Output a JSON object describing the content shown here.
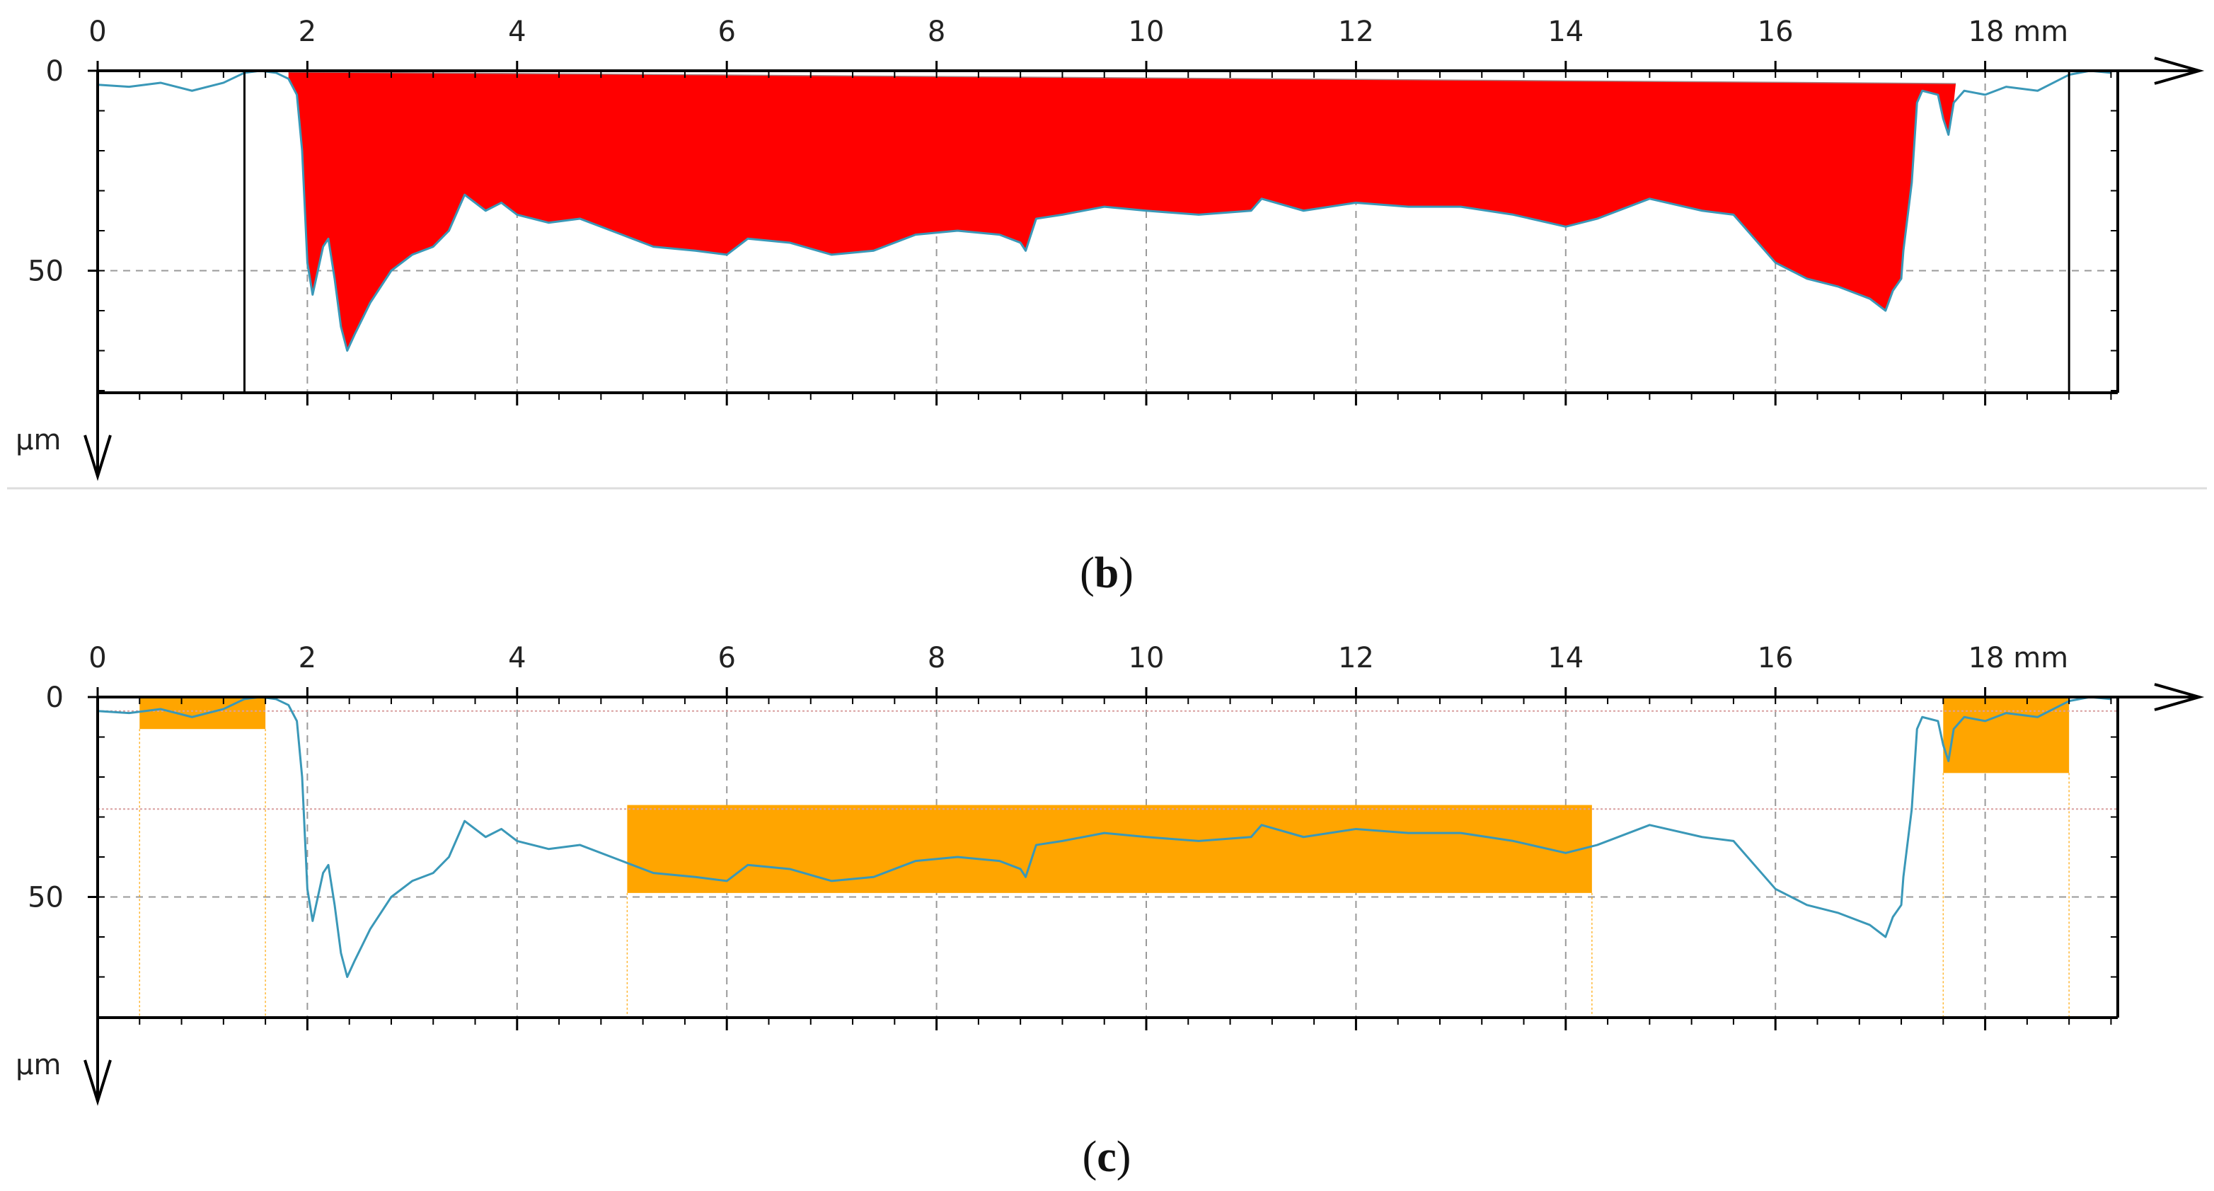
{
  "chart_data": [
    {
      "panel_label": "b",
      "type": "area",
      "x_unit": "mm",
      "y_unit": "µm",
      "xlim": [
        0,
        19.2
      ],
      "ylim": [
        0,
        80
      ],
      "x_major_ticks": [
        0,
        2,
        4,
        6,
        8,
        10,
        12,
        14,
        16,
        18
      ],
      "y_major_ticks": [
        0,
        50
      ],
      "y_inverted": true,
      "grid": true,
      "grid_style": "dashed",
      "boundary_lines_x": [
        1.4,
        18.8
      ],
      "profile": {
        "color": "#3a98b8",
        "points": [
          [
            0,
            3.5
          ],
          [
            0.3,
            4
          ],
          [
            0.6,
            3
          ],
          [
            0.9,
            5
          ],
          [
            1.2,
            3
          ],
          [
            1.4,
            0.5
          ],
          [
            1.55,
            0
          ],
          [
            1.7,
            0.5
          ],
          [
            1.82,
            2
          ],
          [
            1.9,
            6
          ],
          [
            1.95,
            20
          ],
          [
            2.0,
            48
          ],
          [
            2.05,
            56
          ],
          [
            2.1,
            50
          ],
          [
            2.15,
            44
          ],
          [
            2.2,
            42
          ],
          [
            2.26,
            52
          ],
          [
            2.32,
            64
          ],
          [
            2.38,
            70
          ],
          [
            2.45,
            66
          ],
          [
            2.6,
            58
          ],
          [
            2.8,
            50
          ],
          [
            3.0,
            46
          ],
          [
            3.2,
            44
          ],
          [
            3.35,
            40
          ],
          [
            3.5,
            31
          ],
          [
            3.7,
            35
          ],
          [
            3.85,
            33
          ],
          [
            4.0,
            36
          ],
          [
            4.3,
            38
          ],
          [
            4.6,
            37
          ],
          [
            5.0,
            41
          ],
          [
            5.3,
            44
          ],
          [
            5.7,
            45
          ],
          [
            6.0,
            46
          ],
          [
            6.2,
            42
          ],
          [
            6.6,
            43
          ],
          [
            7.0,
            46
          ],
          [
            7.4,
            45
          ],
          [
            7.8,
            41
          ],
          [
            8.2,
            40
          ],
          [
            8.6,
            41
          ],
          [
            8.8,
            43
          ],
          [
            8.85,
            45
          ],
          [
            8.95,
            37
          ],
          [
            9.2,
            36
          ],
          [
            9.6,
            34
          ],
          [
            10.0,
            35
          ],
          [
            10.5,
            36
          ],
          [
            11.0,
            35
          ],
          [
            11.1,
            32
          ],
          [
            11.5,
            35
          ],
          [
            12.0,
            33
          ],
          [
            12.5,
            34
          ],
          [
            13.0,
            34
          ],
          [
            13.5,
            36
          ],
          [
            14.0,
            39
          ],
          [
            14.3,
            37
          ],
          [
            14.8,
            32
          ],
          [
            15.3,
            35
          ],
          [
            15.6,
            36
          ],
          [
            15.8,
            42
          ],
          [
            16.0,
            48
          ],
          [
            16.3,
            52
          ],
          [
            16.6,
            54
          ],
          [
            16.9,
            57
          ],
          [
            17.05,
            60
          ],
          [
            17.12,
            55
          ],
          [
            17.2,
            52
          ],
          [
            17.22,
            45
          ],
          [
            17.3,
            28
          ],
          [
            17.35,
            8
          ],
          [
            17.4,
            5
          ],
          [
            17.55,
            6
          ],
          [
            17.6,
            12
          ],
          [
            17.65,
            16
          ],
          [
            17.7,
            8
          ],
          [
            17.8,
            5
          ],
          [
            18.0,
            6
          ],
          [
            18.2,
            4
          ],
          [
            18.5,
            5
          ],
          [
            18.8,
            1
          ],
          [
            19.0,
            0
          ],
          [
            19.2,
            0.5
          ]
        ]
      },
      "fill_color": "#ff0000",
      "filled_range_x": [
        1.82,
        17.72
      ],
      "reference_line": [
        [
          1.82,
          0.3
        ],
        [
          17.72,
          3.2
        ]
      ]
    },
    {
      "panel_label": "c",
      "type": "line",
      "x_unit": "mm",
      "y_unit": "µm",
      "xlim": [
        0,
        19.2
      ],
      "ylim": [
        0,
        80
      ],
      "x_major_ticks": [
        0,
        2,
        4,
        6,
        8,
        10,
        12,
        14,
        16,
        18
      ],
      "y_major_ticks": [
        0,
        50
      ],
      "y_inverted": true,
      "grid": true,
      "grid_style": "dashed",
      "reference_levels_y": [
        3.5,
        28
      ],
      "highlight_color": "#ffa500",
      "highlight_boxes": [
        {
          "x": [
            0.4,
            1.6
          ],
          "y": [
            0,
            8
          ]
        },
        {
          "x": [
            5.05,
            14.25
          ],
          "y": [
            27,
            49
          ]
        },
        {
          "x": [
            17.6,
            18.8
          ],
          "y": [
            0,
            19
          ]
        }
      ],
      "profile": {
        "color": "#3a98b8",
        "points": [
          [
            0,
            3.5
          ],
          [
            0.3,
            4
          ],
          [
            0.6,
            3
          ],
          [
            0.9,
            5
          ],
          [
            1.2,
            3
          ],
          [
            1.4,
            0.5
          ],
          [
            1.55,
            0
          ],
          [
            1.7,
            0.5
          ],
          [
            1.82,
            2
          ],
          [
            1.9,
            6
          ],
          [
            1.95,
            20
          ],
          [
            2.0,
            48
          ],
          [
            2.05,
            56
          ],
          [
            2.1,
            50
          ],
          [
            2.15,
            44
          ],
          [
            2.2,
            42
          ],
          [
            2.26,
            52
          ],
          [
            2.32,
            64
          ],
          [
            2.38,
            70
          ],
          [
            2.45,
            66
          ],
          [
            2.6,
            58
          ],
          [
            2.8,
            50
          ],
          [
            3.0,
            46
          ],
          [
            3.2,
            44
          ],
          [
            3.35,
            40
          ],
          [
            3.5,
            31
          ],
          [
            3.7,
            35
          ],
          [
            3.85,
            33
          ],
          [
            4.0,
            36
          ],
          [
            4.3,
            38
          ],
          [
            4.6,
            37
          ],
          [
            5.0,
            41
          ],
          [
            5.3,
            44
          ],
          [
            5.7,
            45
          ],
          [
            6.0,
            46
          ],
          [
            6.2,
            42
          ],
          [
            6.6,
            43
          ],
          [
            7.0,
            46
          ],
          [
            7.4,
            45
          ],
          [
            7.8,
            41
          ],
          [
            8.2,
            40
          ],
          [
            8.6,
            41
          ],
          [
            8.8,
            43
          ],
          [
            8.85,
            45
          ],
          [
            8.95,
            37
          ],
          [
            9.2,
            36
          ],
          [
            9.6,
            34
          ],
          [
            10.0,
            35
          ],
          [
            10.5,
            36
          ],
          [
            11.0,
            35
          ],
          [
            11.1,
            32
          ],
          [
            11.5,
            35
          ],
          [
            12.0,
            33
          ],
          [
            12.5,
            34
          ],
          [
            13.0,
            34
          ],
          [
            13.5,
            36
          ],
          [
            14.0,
            39
          ],
          [
            14.3,
            37
          ],
          [
            14.8,
            32
          ],
          [
            15.3,
            35
          ],
          [
            15.6,
            36
          ],
          [
            15.8,
            42
          ],
          [
            16.0,
            48
          ],
          [
            16.3,
            52
          ],
          [
            16.6,
            54
          ],
          [
            16.9,
            57
          ],
          [
            17.05,
            60
          ],
          [
            17.12,
            55
          ],
          [
            17.2,
            52
          ],
          [
            17.22,
            45
          ],
          [
            17.3,
            28
          ],
          [
            17.35,
            8
          ],
          [
            17.4,
            5
          ],
          [
            17.55,
            6
          ],
          [
            17.6,
            12
          ],
          [
            17.65,
            16
          ],
          [
            17.7,
            8
          ],
          [
            17.8,
            5
          ],
          [
            18.0,
            6
          ],
          [
            18.2,
            4
          ],
          [
            18.5,
            5
          ],
          [
            18.8,
            1
          ],
          [
            19.0,
            0
          ],
          [
            19.2,
            0.5
          ]
        ]
      }
    }
  ],
  "labels": {
    "x_tick_labels": [
      "0",
      "2",
      "4",
      "6",
      "8",
      "10",
      "12",
      "14",
      "16",
      "18 mm"
    ],
    "y_tick_labels": [
      "0",
      "50"
    ],
    "y_unit_label": "µm"
  },
  "captions": {
    "b": {
      "open": "(",
      "letter": "b",
      "close": ")"
    },
    "c": {
      "open": "(",
      "letter": "c",
      "close": ")"
    }
  },
  "colors": {
    "axis": "#000000",
    "grid": "#9a9a9a",
    "profile": "#3a98b8",
    "fill": "#ff0000",
    "highlight": "#ffa500",
    "reference_line": "#d9a0a0",
    "separator": "#dddddd"
  }
}
